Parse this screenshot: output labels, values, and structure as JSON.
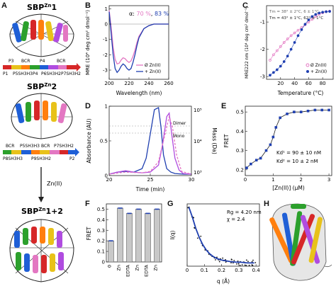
{
  "panel_letters": {
    "a": "A",
    "b": "B",
    "c": "C",
    "d": "D",
    "e": "E",
    "f": "F",
    "g": "G",
    "h": "H"
  },
  "panelA": {
    "title1": "SBP",
    "title1_sup": "Zn",
    "title1_suffix": "1",
    "title2": "SBP",
    "title2_sup": "Zn",
    "title2_suffix": "2",
    "title3": "SBP",
    "title3_sup": "Zn",
    "title3_suffix": "1+2",
    "arrow_label": "Zn(II)",
    "row1_top": [
      "P3",
      "BCR",
      "P4",
      "BCR"
    ],
    "row1_bottom": [
      "P1",
      "P5SH3H3",
      "P4",
      "P6SH3H2",
      "P7SH3H2"
    ],
    "row2_top": [
      "BCR",
      "P5SH3H3",
      "BCR",
      "P7SH3H2"
    ],
    "row2_bottom": [
      "P8SH3H3",
      "P9SH3H2",
      "P2"
    ],
    "colors": {
      "red": "#d62728",
      "blue": "#1f5fd6",
      "green": "#2ca02c",
      "yellow": "#e8c21a",
      "orange": "#ff7f0e",
      "purple": "#b04ce0",
      "pink": "#e377c2"
    }
  },
  "chart_data": [
    {
      "panel": "B",
      "type": "line",
      "xlabel": "Wavelength (nm)",
      "ylabel": "MRE (10⁴ deg cm² dmol⁻¹)",
      "xlim": [
        200,
        260
      ],
      "ylim": [
        -3.6,
        1.2
      ],
      "xticks": [
        200,
        220,
        240,
        260
      ],
      "yticks": [
        -3,
        -2,
        -1,
        0,
        1
      ],
      "annotation_prefix": "α:",
      "annotation_values": [
        "70 %",
        "83 %"
      ],
      "legend": [
        "Ø Zn(II)",
        "+ Zn(II)"
      ],
      "series": [
        {
          "name": "Ø Zn(II)",
          "color": "#e377c2",
          "x": [
            200,
            202,
            204,
            206,
            208,
            210,
            212,
            214,
            216,
            218,
            220,
            222,
            224,
            226,
            228,
            230,
            235,
            240,
            245,
            250,
            255,
            260
          ],
          "y": [
            0.9,
            -0.2,
            -1.5,
            -2.3,
            -2.6,
            -2.55,
            -2.35,
            -2.2,
            -2.25,
            -2.4,
            -2.5,
            -2.4,
            -2.1,
            -1.7,
            -1.2,
            -0.8,
            -0.3,
            -0.1,
            0,
            0,
            0,
            0
          ]
        },
        {
          "name": "+ Zn(II)",
          "color": "#1f3fb0",
          "x": [
            200,
            202,
            204,
            206,
            208,
            210,
            212,
            214,
            216,
            218,
            220,
            222,
            224,
            226,
            228,
            230,
            235,
            240,
            245,
            250,
            255,
            260
          ],
          "y": [
            0.8,
            -0.6,
            -2.0,
            -2.9,
            -3.15,
            -3.0,
            -2.75,
            -2.6,
            -2.7,
            -2.9,
            -3.0,
            -2.9,
            -2.5,
            -2.0,
            -1.4,
            -0.9,
            -0.3,
            -0.1,
            0,
            0,
            0,
            0
          ]
        }
      ]
    },
    {
      "panel": "C",
      "type": "scatter",
      "xlabel": "Temperature (°C)",
      "ylabel": "MRE222 nm (10⁴ deg cm² dmol⁻¹)",
      "xlim": [
        0,
        95
      ],
      "ylim": [
        -3.1,
        -0.4
      ],
      "xticks": [
        20,
        40,
        60,
        80
      ],
      "yticks": [
        -3,
        -2,
        -1
      ],
      "annotations": [
        "Tm = 38° ± 2°C, 6 ± 1°C",
        "Tm = 43° ± 1°C, 62° ± 1°C"
      ],
      "legend": [
        "Ø Zn(II)",
        "+ Zn(II)"
      ],
      "series": [
        {
          "name": "Ø Zn(II)",
          "color": "#e377c2",
          "x": [
            5,
            10,
            15,
            20,
            25,
            30,
            35,
            40,
            45,
            50,
            55,
            60,
            65,
            70,
            75,
            80,
            85,
            90
          ],
          "y": [
            -2.4,
            -2.2,
            -2.05,
            -1.9,
            -1.75,
            -1.62,
            -1.5,
            -1.4,
            -1.3,
            -1.2,
            -1.1,
            -1.0,
            -0.9,
            -0.8,
            -0.72,
            -0.66,
            -0.62,
            -0.6
          ]
        },
        {
          "name": "+ Zn(II)",
          "color": "#1f3fb0",
          "x": [
            5,
            10,
            15,
            20,
            25,
            30,
            35,
            40,
            45,
            50,
            55,
            60,
            65,
            70,
            75,
            80,
            85,
            90
          ],
          "y": [
            -2.95,
            -2.85,
            -2.75,
            -2.62,
            -2.45,
            -2.25,
            -2.0,
            -1.75,
            -1.5,
            -1.28,
            -1.08,
            -0.92,
            -0.8,
            -0.72,
            -0.67,
            -0.64,
            -0.62,
            -0.61
          ]
        }
      ]
    },
    {
      "panel": "D",
      "type": "line",
      "xlabel": "Time (min)",
      "ylabel": "Absorbance (AU)",
      "ylabel_right": "Mass (Da)",
      "xlim": [
        20,
        30
      ],
      "ylim": [
        0,
        1
      ],
      "xticks": [
        20,
        25,
        30
      ],
      "yticks": [
        0,
        0.5,
        1
      ],
      "yticks_right": [
        "10³",
        "10⁴",
        "10⁵"
      ],
      "annotations": [
        "Dimer",
        "Mono"
      ],
      "series": [
        {
          "name": "+ Zn(II)",
          "color": "#1f3fb0",
          "x": [
            20,
            21,
            22,
            23,
            24,
            24.5,
            25,
            25.5,
            26,
            26.3,
            26.6,
            27,
            27.5,
            28,
            29,
            30
          ],
          "y": [
            0.02,
            0.05,
            0.06,
            0.05,
            0.1,
            0.25,
            0.6,
            0.95,
            0.98,
            0.7,
            0.3,
            0.1,
            0.05,
            0.03,
            0.02,
            0.02
          ]
        },
        {
          "name": "Ø Zn(II)",
          "color": "#b04ce0",
          "x": [
            20,
            21,
            22,
            23,
            24,
            25,
            26,
            26.5,
            27,
            27.3,
            27.6,
            28,
            28.5,
            29,
            30
          ],
          "y": [
            0.02,
            0.05,
            0.07,
            0.05,
            0.04,
            0.05,
            0.15,
            0.45,
            0.85,
            0.9,
            0.6,
            0.25,
            0.08,
            0.03,
            0.02
          ]
        },
        {
          "name": "Ø Zn(II) dashed",
          "color": "#e377c2",
          "x": [
            20,
            22,
            24,
            25,
            26,
            26.8,
            27.3,
            27.7,
            28.2,
            28.8,
            30
          ],
          "y": [
            0.02,
            0.05,
            0.04,
            0.06,
            0.2,
            0.6,
            0.85,
            0.7,
            0.3,
            0.06,
            0.02
          ]
        }
      ]
    },
    {
      "panel": "E",
      "type": "scatter",
      "xlabel": "[Zn(II)] (μM)",
      "ylabel": "FRET",
      "xlim": [
        0,
        3.1
      ],
      "ylim": [
        0.17,
        0.53
      ],
      "xticks": [
        0,
        1,
        2,
        3
      ],
      "yticks": [
        0.2,
        0.3,
        0.4,
        0.5
      ],
      "annotations": [
        "Kd¹ = 90 ± 10 nM",
        "Kd² = 10 ± 2 nM"
      ],
      "x": [
        0.05,
        0.2,
        0.4,
        0.55,
        0.75,
        0.9,
        1.0,
        1.1,
        1.25,
        1.5,
        1.75,
        2.0,
        2.25,
        2.5,
        2.75,
        3.0
      ],
      "y": [
        0.21,
        0.23,
        0.25,
        0.26,
        0.3,
        0.33,
        0.37,
        0.42,
        0.47,
        0.49,
        0.5,
        0.5,
        0.505,
        0.51,
        0.51,
        0.51
      ],
      "series_color": "#1f3fb0"
    },
    {
      "panel": "F",
      "type": "bar",
      "ylabel": "FRET",
      "ylim": [
        0,
        0.55
      ],
      "yticks": [
        0,
        0.1,
        0.2,
        0.3,
        0.4,
        0.5
      ],
      "categories": [
        "0",
        "Zn",
        "EDTA",
        "Zn",
        "EDTA",
        "Zn"
      ],
      "values": [
        0.2,
        0.51,
        0.46,
        0.5,
        0.46,
        0.5
      ],
      "bar_color": "#c8c8c8"
    },
    {
      "panel": "G",
      "type": "scatter",
      "xlabel": "q (Å)",
      "ylabel": "I(q)",
      "xlim": [
        0,
        0.42
      ],
      "xticks": [
        0,
        0.1,
        0.2,
        0.3,
        0.4
      ],
      "annotations": [
        "Rg = 4.20 nm",
        "χ = 2.4"
      ],
      "x": [
        0.01,
        0.03,
        0.05,
        0.07,
        0.09,
        0.11,
        0.13,
        0.15,
        0.17,
        0.19,
        0.21,
        0.23,
        0.25,
        0.27,
        0.29,
        0.31,
        0.33,
        0.35,
        0.37,
        0.39
      ],
      "y": [
        1.0,
        0.85,
        0.68,
        0.54,
        0.43,
        0.35,
        0.29,
        0.25,
        0.22,
        0.2,
        0.19,
        0.18,
        0.17,
        0.165,
        0.16,
        0.16,
        0.155,
        0.15,
        0.15,
        0.15
      ],
      "fit_color": "#1f3fb0"
    }
  ]
}
